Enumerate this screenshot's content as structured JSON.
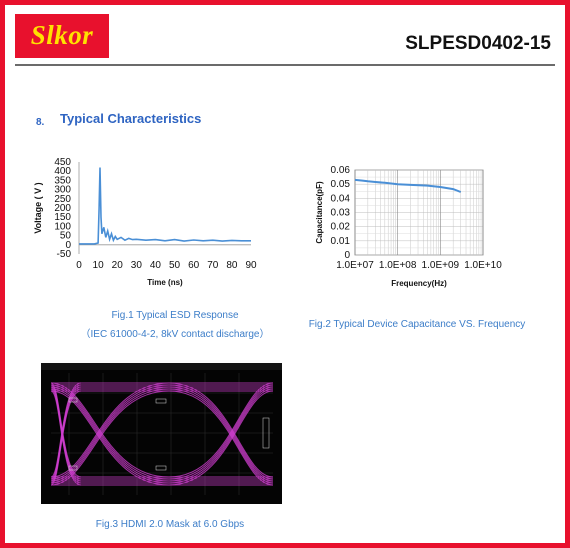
{
  "header": {
    "logo_text": "Slkor",
    "part_number": "SLPESD0402-15",
    "accent_color": "#e8112d",
    "logo_text_color": "#ffe100"
  },
  "section": {
    "number": "8.",
    "title": "Typical Characteristics"
  },
  "chart_data": [
    {
      "type": "line",
      "xlabel": "Time (ns)",
      "ylabel": "Voltage ( V )",
      "xlim": [
        0,
        90
      ],
      "ylim": [
        -50,
        450
      ],
      "x_ticks": [
        "0",
        "10",
        "20",
        "30",
        "40",
        "50",
        "60",
        "70",
        "80",
        "90"
      ],
      "y_ticks": [
        "450",
        "400",
        "350",
        "300",
        "250",
        "200",
        "150",
        "100",
        "50",
        "0",
        "-50"
      ],
      "series": [
        {
          "color": "#4a8fd6",
          "x": [
            0,
            8,
            10,
            10.5,
            11,
            11.5,
            12,
            13,
            14,
            15,
            16,
            17,
            18,
            19,
            20,
            22,
            24,
            26,
            28,
            30,
            35,
            40,
            45,
            50,
            55,
            60,
            65,
            70,
            75,
            80,
            85,
            90
          ],
          "y": [
            5,
            5,
            10,
            200,
            420,
            150,
            60,
            95,
            40,
            75,
            30,
            60,
            25,
            45,
            30,
            40,
            25,
            35,
            28,
            30,
            25,
            28,
            22,
            28,
            20,
            26,
            22,
            25,
            20,
            24,
            22,
            22
          ]
        }
      ]
    },
    {
      "type": "line",
      "xlabel": "Frequency(Hz)",
      "ylabel": "Capacitance(pF)",
      "x_scale": "log",
      "xlim": [
        10000000,
        10000000000
      ],
      "ylim": [
        0,
        0.06
      ],
      "x_ticks": [
        "1.0E+07",
        "1.0E+08",
        "1.0E+09",
        "1.0E+10"
      ],
      "y_ticks": [
        "0.06",
        "0.05",
        "0.04",
        "0.03",
        "0.02",
        "0.01",
        "0"
      ],
      "grid": true,
      "series": [
        {
          "color": "#4a8fd6",
          "x": [
            10000000,
            15000000,
            20000000,
            30000000,
            50000000,
            100000000,
            200000000,
            500000000,
            1000000000,
            2000000000,
            3000000000
          ],
          "y": [
            0.053,
            0.0525,
            0.052,
            0.0515,
            0.051,
            0.05,
            0.0495,
            0.049,
            0.048,
            0.0465,
            0.0445
          ]
        }
      ]
    }
  ],
  "captions": {
    "fig1_line1": "Fig.1 Typical ESD Response",
    "fig1_line2": "（IEC 61000-4-2, 8kV contact discharge）",
    "fig2": "Fig.2 Typical Device Capacitance VS. Frequency",
    "fig3": "Fig.3 HDMI 2.0 Mask at 6.0 Gbps"
  },
  "eye_diagram": {
    "trace_color": "#d23fd2"
  }
}
